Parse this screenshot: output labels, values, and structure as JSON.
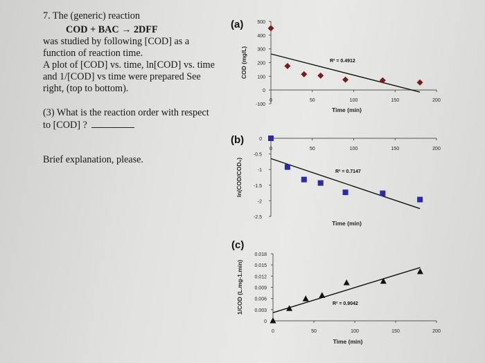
{
  "question": {
    "lines": [
      "7. The (generic) reaction",
      "COD + BAC → 2DFF",
      "was studied by following [COD] as a",
      "function of reaction time.",
      "A plot of [COD] vs. time, ln[COD] vs. time",
      "and 1/[COD] vs time were prepared See",
      "right, (top to bottom)."
    ],
    "sub_question_line1": "(3) What is the reaction order with respect",
    "sub_question_line2": "to [COD] ?",
    "explanation_prompt": "Brief explanation, please."
  },
  "chart_data": [
    {
      "type": "scatter",
      "panel_label": "(a)",
      "xlabel": "Time (min)",
      "ylabel": "COD (mg/L)",
      "xlim": [
        0,
        200
      ],
      "ylim": [
        -100,
        500
      ],
      "xticks": [
        "0",
        "50",
        "100",
        "150",
        "200"
      ],
      "yticks": [
        "500",
        "400",
        "300",
        "200",
        "100",
        "0",
        "-100"
      ],
      "marker": "diamond",
      "color": "#7a1c1c",
      "x": [
        0,
        20,
        40,
        60,
        90,
        135,
        180
      ],
      "y": [
        450,
        175,
        115,
        105,
        75,
        70,
        55
      ],
      "trendline": {
        "x": [
          0,
          180
        ],
        "y": [
          263,
          -15
        ]
      },
      "annotation": "R² = 0.4912",
      "grid": false
    },
    {
      "type": "scatter",
      "panel_label": "(b)",
      "xlabel": "Time (min)",
      "ylabel": "ln(COD/COD₀)",
      "xlim": [
        0,
        200
      ],
      "ylim": [
        -2.5,
        0
      ],
      "xticks": [
        "0",
        "50",
        "100",
        "150",
        "200"
      ],
      "yticks": [
        "0",
        "-0.5",
        "-1",
        "-1.5",
        "-2",
        "-2.5"
      ],
      "marker": "square",
      "color": "#2b2ba6",
      "x": [
        0,
        20,
        40,
        60,
        90,
        135,
        180
      ],
      "y": [
        0,
        -0.92,
        -1.32,
        -1.43,
        -1.73,
        -1.76,
        -1.96
      ],
      "trendline": {
        "x": [
          0,
          180
        ],
        "y": [
          -0.65,
          -2.25
        ]
      },
      "annotation": "R² = 0.7147",
      "grid": false
    },
    {
      "type": "scatter",
      "panel_label": "(c)",
      "xlabel": "Time (min)",
      "ylabel": "1/COD (L.mg-1.min)",
      "xlim": [
        0,
        200
      ],
      "ylim": [
        0,
        0.018
      ],
      "xticks": [
        "0",
        "50",
        "100",
        "150",
        "200"
      ],
      "yticks": [
        "0.018",
        "0.015",
        "0.012",
        "0.009",
        "0.006",
        "0.003",
        "0"
      ],
      "marker": "triangle",
      "color": "#111111",
      "x": [
        0,
        20,
        40,
        60,
        90,
        135,
        180
      ],
      "y": [
        0,
        0.0033,
        0.0059,
        0.0068,
        0.0102,
        0.0106,
        0.0132
      ],
      "trendline": {
        "x": [
          0,
          180
        ],
        "y": [
          0.0022,
          0.0143
        ]
      },
      "annotation": "R² = 0.9042",
      "grid": false
    }
  ]
}
